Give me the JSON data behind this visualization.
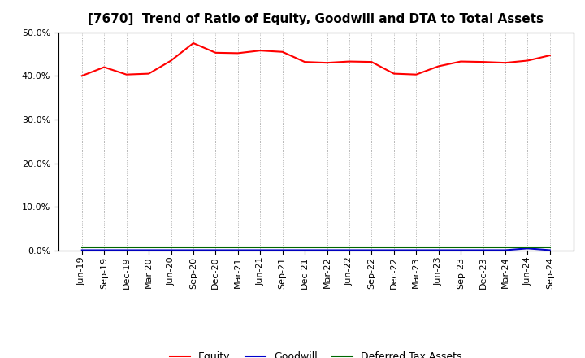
{
  "title": "[7670]  Trend of Ratio of Equity, Goodwill and DTA to Total Assets",
  "labels": [
    "Jun-19",
    "Sep-19",
    "Dec-19",
    "Mar-20",
    "Jun-20",
    "Sep-20",
    "Dec-20",
    "Mar-21",
    "Jun-21",
    "Sep-21",
    "Dec-21",
    "Mar-22",
    "Jun-22",
    "Sep-22",
    "Dec-22",
    "Mar-23",
    "Jun-23",
    "Sep-23",
    "Dec-23",
    "Mar-24",
    "Jun-24",
    "Sep-24"
  ],
  "equity": [
    40.0,
    42.0,
    40.3,
    40.5,
    43.5,
    47.5,
    45.3,
    45.2,
    45.8,
    45.5,
    43.2,
    43.0,
    43.3,
    43.2,
    40.5,
    40.3,
    42.2,
    43.3,
    43.2,
    43.0,
    43.5,
    44.7
  ],
  "goodwill": [
    0.1,
    0.1,
    0.1,
    0.1,
    0.1,
    0.1,
    0.1,
    0.1,
    0.1,
    0.1,
    0.1,
    0.1,
    0.1,
    0.1,
    0.1,
    0.1,
    0.1,
    0.1,
    0.1,
    0.1,
    0.5,
    0.1
  ],
  "dta": [
    0.8,
    0.8,
    0.8,
    0.8,
    0.8,
    0.8,
    0.8,
    0.8,
    0.8,
    0.8,
    0.8,
    0.8,
    0.8,
    0.8,
    0.8,
    0.8,
    0.8,
    0.8,
    0.8,
    0.8,
    0.8,
    0.8
  ],
  "equity_color": "#ff0000",
  "goodwill_color": "#0000cc",
  "dta_color": "#006600",
  "ylim": [
    0.0,
    50.0
  ],
  "yticks": [
    0.0,
    10.0,
    20.0,
    30.0,
    40.0,
    50.0
  ],
  "bg_color": "#ffffff",
  "plot_bg_color": "#ffffff",
  "grid_color": "#999999",
  "title_fontsize": 11,
  "tick_fontsize": 8,
  "legend_labels": [
    "Equity",
    "Goodwill",
    "Deferred Tax Assets"
  ]
}
